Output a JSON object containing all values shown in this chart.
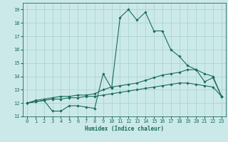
{
  "xlabel": "Humidex (Indice chaleur)",
  "xlim": [
    -0.5,
    23.5
  ],
  "ylim": [
    11,
    19.5
  ],
  "yticks": [
    11,
    12,
    13,
    14,
    15,
    16,
    17,
    18,
    19
  ],
  "xticks": [
    0,
    1,
    2,
    3,
    4,
    5,
    6,
    7,
    8,
    9,
    10,
    11,
    12,
    13,
    14,
    15,
    16,
    17,
    18,
    19,
    20,
    21,
    22,
    23
  ],
  "background_color": "#cce9e9",
  "grid_color": "#aad4d4",
  "line_color": "#1a6b5a",
  "series": [
    {
      "x": [
        0,
        1,
        2,
        3,
        4,
        5,
        6,
        7,
        8,
        9,
        10,
        11,
        12,
        13,
        14,
        15,
        16,
        17,
        18,
        19,
        20,
        21,
        22,
        23
      ],
      "y": [
        12,
        12.1,
        12.2,
        11.4,
        11.4,
        11.8,
        11.8,
        11.7,
        11.6,
        14.2,
        13.1,
        18.4,
        19.0,
        18.2,
        18.8,
        17.4,
        17.4,
        16.0,
        15.5,
        14.8,
        14.5,
        13.6,
        13.9,
        12.5
      ]
    },
    {
      "x": [
        0,
        1,
        2,
        3,
        4,
        5,
        6,
        7,
        8,
        9,
        10,
        11,
        12,
        13,
        14,
        15,
        16,
        17,
        18,
        19,
        20,
        21,
        22,
        23
      ],
      "y": [
        12.0,
        12.2,
        12.3,
        12.4,
        12.5,
        12.5,
        12.6,
        12.6,
        12.7,
        13.0,
        13.2,
        13.3,
        13.4,
        13.5,
        13.7,
        13.9,
        14.1,
        14.2,
        14.3,
        14.5,
        14.5,
        14.2,
        14.0,
        12.5
      ]
    },
    {
      "x": [
        0,
        1,
        2,
        3,
        4,
        5,
        6,
        7,
        8,
        9,
        10,
        11,
        12,
        13,
        14,
        15,
        16,
        17,
        18,
        19,
        20,
        21,
        22,
        23
      ],
      "y": [
        12.0,
        12.1,
        12.2,
        12.3,
        12.3,
        12.4,
        12.4,
        12.5,
        12.5,
        12.6,
        12.7,
        12.8,
        12.9,
        13.0,
        13.1,
        13.2,
        13.3,
        13.4,
        13.5,
        13.5,
        13.4,
        13.3,
        13.2,
        12.5
      ]
    }
  ]
}
